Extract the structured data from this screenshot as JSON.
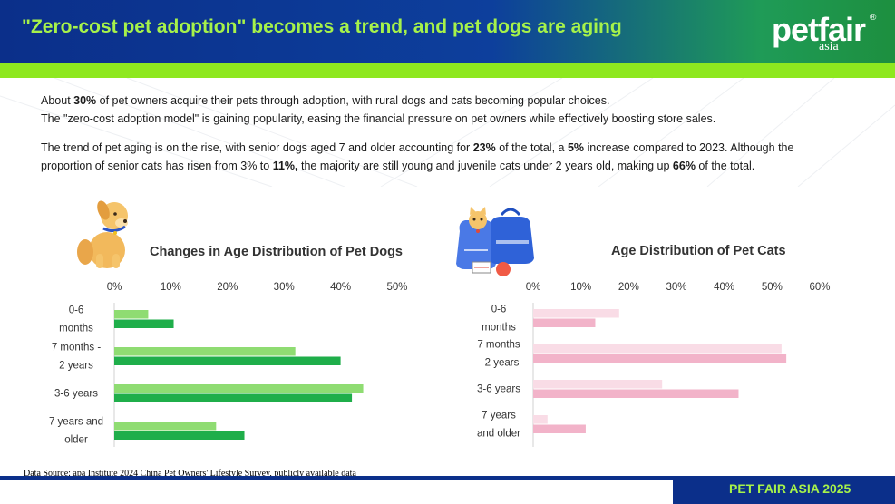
{
  "header": {
    "title": "\"Zero-cost pet adoption\" becomes a trend, and pet dogs are aging",
    "logo_main": "petfair",
    "logo_sub": "asia",
    "logo_reg": "®"
  },
  "paragraphs": {
    "p1_line1_a": "About ",
    "p1_line1_b": "30%",
    "p1_line1_c": " of pet owners acquire their pets through adoption, with rural dogs and cats becoming popular choices.",
    "p1_line2": "The \"zero-cost adoption model\" is gaining popularity, easing the financial pressure on pet owners while effectively boosting store sales.",
    "p2_line1_a": "The trend of pet aging is on the rise, with senior dogs aged 7 and older accounting for ",
    "p2_line1_b": "23%",
    "p2_line1_c": " of the total, a ",
    "p2_line1_d": "5%",
    "p2_line1_e": " increase compared to 2023. Although the",
    "p2_line2_a": "proportion of senior cats has risen from 3% to ",
    "p2_line2_b": "11%,",
    "p2_line2_c": " the majority are still young and juvenile cats under 2 years old, making up ",
    "p2_line2_d": "66%",
    "p2_line2_e": " of the total."
  },
  "chart_data": [
    {
      "type": "bar",
      "orientation": "horizontal",
      "title": "Changes in Age Distribution of Pet Dogs",
      "categories": [
        [
          "0-6",
          "months"
        ],
        [
          "7 months -",
          "2 years"
        ],
        [
          "3-6 years"
        ],
        [
          "7 years and",
          "older"
        ]
      ],
      "series": [
        {
          "values": [
            6,
            32,
            44,
            18
          ],
          "color": "#8fdc72"
        },
        {
          "values": [
            10.5,
            40,
            42,
            23
          ],
          "color": "#1fae4a"
        }
      ],
      "xlim": [
        0,
        50
      ],
      "ticks": [
        0,
        10,
        20,
        30,
        40,
        50
      ],
      "tick_labels": [
        "0%",
        "10%",
        "20%",
        "30%",
        "40%",
        "50%"
      ],
      "legend": "none",
      "grid": false
    },
    {
      "type": "bar",
      "orientation": "horizontal",
      "title": "Age Distribution of Pet Cats",
      "categories": [
        [
          "0-6",
          "months"
        ],
        [
          "7 months",
          "- 2 years"
        ],
        [
          "3-6 years"
        ],
        [
          "7 years",
          "and older"
        ]
      ],
      "series": [
        {
          "values": [
            18,
            52,
            27,
            3
          ],
          "color": "#f9dce6"
        },
        {
          "values": [
            13,
            53,
            43,
            11
          ],
          "color": "#f2b3c9"
        }
      ],
      "xlim": [
        0,
        60
      ],
      "ticks": [
        0,
        10,
        20,
        30,
        40,
        50,
        60
      ],
      "tick_labels": [
        "0%",
        "10%",
        "20%",
        "30%",
        "40%",
        "50%",
        "60%"
      ],
      "legend": "none",
      "grid": false
    }
  ],
  "source": "Data Source: apa Institute 2024 China Pet Owners' Lifestyle Survey, publicly available data",
  "footer": "PET FAIR ASIA 2025",
  "icons": {
    "dog": "sitting-dog-icon",
    "cat": "cat-with-bags-icon"
  }
}
